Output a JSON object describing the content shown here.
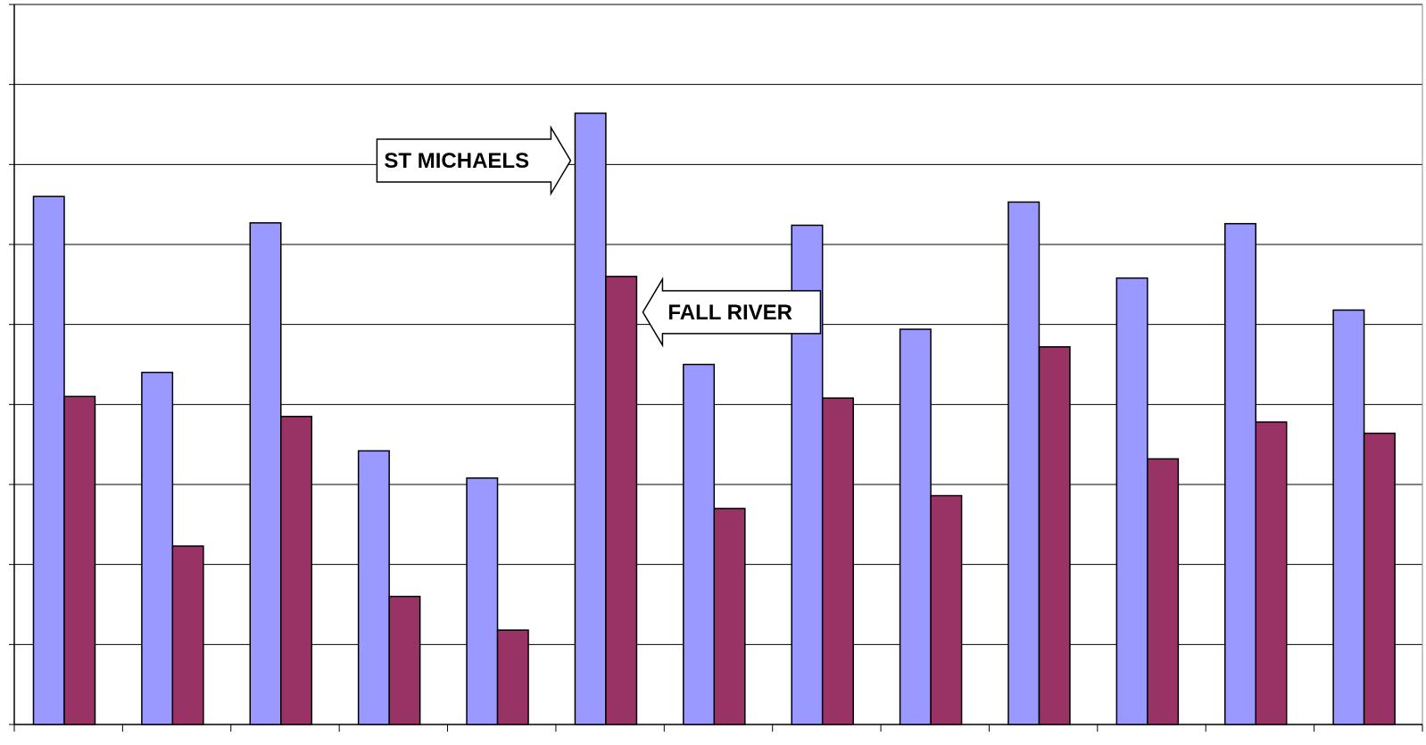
{
  "chart_data": {
    "type": "bar",
    "title": "",
    "xlabel": "",
    "ylabel": "",
    "ylim": [
      0,
      9
    ],
    "y_gridlines": [
      1,
      2,
      3,
      4,
      5,
      6,
      7,
      8,
      9
    ],
    "grid": true,
    "legend": "none",
    "categories": [
      "",
      "",
      "",
      "",
      "",
      "",
      "",
      "",
      "",
      "",
      "",
      "",
      ""
    ],
    "series": [
      {
        "color": "#9999ff",
        "values": [
          6.6,
          4.4,
          6.27,
          3.42,
          3.08,
          7.64,
          4.5,
          6.24,
          4.94,
          6.53,
          5.58,
          6.26,
          5.18
        ]
      },
      {
        "color": "#993366",
        "values": [
          4.1,
          2.23,
          3.85,
          1.6,
          1.18,
          5.6,
          2.7,
          4.08,
          2.86,
          4.72,
          3.32,
          3.78,
          3.64
        ]
      }
    ],
    "annotations": [
      {
        "text": "ST MICHAELS",
        "points_to_category": 5,
        "points_to_series": 0,
        "direction": "right"
      },
      {
        "text": "FALL RIVER",
        "points_to_category": 5,
        "points_to_series": 1,
        "direction": "left"
      }
    ]
  }
}
